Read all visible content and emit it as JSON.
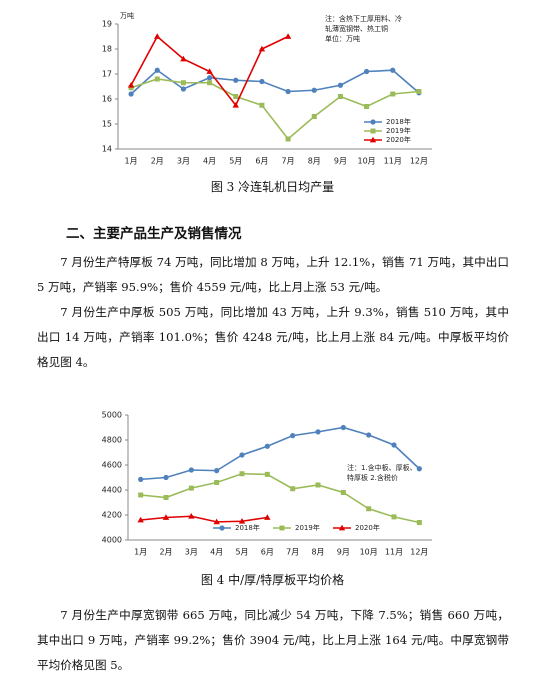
{
  "chart_data": [
    {
      "type": "line",
      "y_label": "万吨",
      "categories": [
        "1月",
        "2月",
        "3月",
        "4月",
        "5月",
        "6月",
        "7月",
        "8月",
        "9月",
        "10月",
        "11月",
        "12月"
      ],
      "annotations": [
        "注：含热下工厚用料、冷",
        "轧薄宽钢带、热工铜",
        "单位：万吨"
      ],
      "series": [
        {
          "name": "2018年",
          "color": "#4f81bd",
          "marker": "circle",
          "values": [
            16.2,
            17.15,
            16.4,
            16.85,
            16.75,
            16.7,
            16.3,
            16.35,
            16.55,
            17.1,
            17.15,
            16.25
          ]
        },
        {
          "name": "2019年",
          "color": "#9bbb59",
          "marker": "square",
          "values": [
            16.45,
            16.8,
            16.65,
            16.65,
            16.1,
            15.75,
            14.4,
            15.3,
            16.1,
            15.7,
            16.2,
            16.3
          ]
        },
        {
          "name": "2020年",
          "color": "#e00000",
          "marker": "triangle",
          "values": [
            16.55,
            18.5,
            17.6,
            17.1,
            15.75,
            18.0,
            18.5,
            null,
            null,
            null,
            null,
            null
          ]
        }
      ],
      "ylim": [
        14,
        19
      ],
      "yticks": [
        14,
        15,
        16,
        17,
        18,
        19
      ],
      "legend": "lower right"
    },
    {
      "type": "line",
      "categories": [
        "1月",
        "2月",
        "3月",
        "4月",
        "5月",
        "6月",
        "7月",
        "8月",
        "9月",
        "10月",
        "11月",
        "12月"
      ],
      "annotations": [
        "注：1.含中板、厚板、",
        "特厚板   2.含税价"
      ],
      "series": [
        {
          "name": "2018年",
          "color": "#4f81bd",
          "marker": "circle",
          "values": [
            4485,
            4500,
            4560,
            4555,
            4680,
            4750,
            4835,
            4865,
            4900,
            4840,
            4760,
            4570
          ]
        },
        {
          "name": "2019年",
          "color": "#9bbb59",
          "marker": "square",
          "values": [
            4360,
            4340,
            4415,
            4460,
            4530,
            4525,
            4410,
            4440,
            4380,
            4250,
            4185,
            4140
          ]
        },
        {
          "name": "2020年",
          "color": "#e00000",
          "marker": "triangle",
          "values": [
            4160,
            4180,
            4190,
            4145,
            4150,
            4180,
            null,
            null,
            null,
            null,
            null,
            null
          ]
        }
      ],
      "ylim": [
        4000,
        5000
      ],
      "yticks": [
        4000,
        4200,
        4400,
        4600,
        4800,
        5000
      ],
      "legend": "bottom"
    }
  ],
  "document": {
    "caption1": "图 3   冷连轧机日均产量",
    "heading": "二、主要产品生产及销售情况",
    "para1": "7 月份生产特厚板 74 万吨，同比增加 8 万吨，上升 12.1%，销售 71 万吨，其中出口 5 万吨，产销率 95.9%；售价 4559 元/吨，比上月上涨 53 元/吨。",
    "para2": "7 月份生产中厚板 505 万吨，同比增加 43 万吨，上升 9.3%，销售 510 万吨，其中出口 14 万吨，产销率 101.0%；售价 4248 元/吨，比上月上涨 84 元/吨。中厚板平均价格见图 4。",
    "caption2": "图 4   中/厚/特厚板平均价格",
    "para3": "7 月份生产中厚宽钢带 665 万吨，同比减少 54 万吨，下降 7.5%；销售 660 万吨，其中出口 9 万吨，产销率 99.2%；售价 3904 元/吨，比上月上涨 164 元/吨。中厚宽钢带平均价格见图 5。"
  }
}
